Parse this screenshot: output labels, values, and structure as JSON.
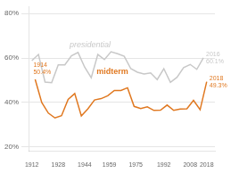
{
  "chart_data": {
    "type": "line",
    "series": [
      {
        "name": "presidential",
        "color": "#c8c8c8",
        "x": [
          1912,
          1916,
          1920,
          1924,
          1928,
          1932,
          1936,
          1940,
          1944,
          1948,
          1952,
          1956,
          1960,
          1964,
          1968,
          1972,
          1976,
          1980,
          1984,
          1988,
          1992,
          1996,
          2000,
          2004,
          2008,
          2012,
          2016
        ],
        "values": [
          58.8,
          61.6,
          49.2,
          48.9,
          56.9,
          56.9,
          61.0,
          62.5,
          55.9,
          51.1,
          61.6,
          59.3,
          62.8,
          61.9,
          60.8,
          55.2,
          53.6,
          52.8,
          53.3,
          50.3,
          55.2,
          49.0,
          51.3,
          55.7,
          57.1,
          54.9,
          60.1
        ]
      },
      {
        "name": "midterm",
        "color": "#e07820",
        "x": [
          1914,
          1918,
          1922,
          1926,
          1930,
          1934,
          1938,
          1942,
          1946,
          1950,
          1954,
          1958,
          1962,
          1966,
          1970,
          1974,
          1978,
          1982,
          1986,
          1990,
          1994,
          1998,
          2002,
          2006,
          2010,
          2014,
          2018
        ],
        "values": [
          50.4,
          40.0,
          35.2,
          33.0,
          34.0,
          41.4,
          44.0,
          33.9,
          37.1,
          41.1,
          41.7,
          43.0,
          45.4,
          45.4,
          46.6,
          38.2,
          37.2,
          38.0,
          36.4,
          36.5,
          38.8,
          36.4,
          37.0,
          37.1,
          40.9,
          36.7,
          49.3
        ]
      }
    ],
    "xlim": [
      1910,
      2023
    ],
    "xticks": [
      1912,
      1928,
      1944,
      1959,
      1975,
      1992,
      2008,
      2018
    ],
    "ylim": [
      18,
      83
    ],
    "yticks": [
      {
        "value": 20,
        "label": "20%"
      },
      {
        "value": 40,
        "label": "40%"
      },
      {
        "value": 60,
        "label": "60%"
      },
      {
        "value": 80,
        "label": "80%"
      }
    ],
    "grid": "y",
    "annotations": [
      {
        "text": "1914\n50.4%",
        "x": 1914,
        "y": 50.4
      },
      {
        "text": "2016\n60.1%",
        "x": 2016,
        "y": 60.1
      },
      {
        "text": "2018\n49.3%",
        "x": 2018,
        "y": 49.3
      }
    ]
  }
}
